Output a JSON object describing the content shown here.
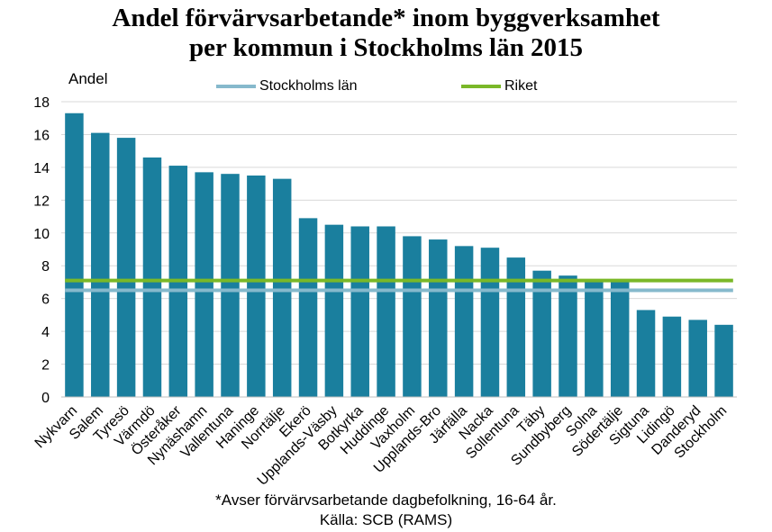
{
  "chart_data": {
    "type": "bar",
    "title_line1": "Andel förvärvsarbetande* inom byggverksamhet",
    "title_line2": "per kommun i Stockholms län 2015",
    "ylabel": "Andel",
    "ylim": [
      0,
      18
    ],
    "yticks": [
      "0",
      "2",
      "4",
      "6",
      "8",
      "10",
      "12",
      "14",
      "16",
      "18"
    ],
    "grid": true,
    "legend_position": "top",
    "bar_color": "#1a7f9e",
    "categories": [
      "Nykvarn",
      "Salem",
      "Tyresö",
      "Värmdö",
      "Österåker",
      "Nynäshamn",
      "Vallentuna",
      "Haninge",
      "Norrtälje",
      "Ekerö",
      "Upplands-Väsby",
      "Botkyrka",
      "Huddinge",
      "Vaxholm",
      "Upplands-Bro",
      "Järfälla",
      "Nacka",
      "Sollentuna",
      "Täby",
      "Sundbyberg",
      "Solna",
      "Södertälje",
      "Sigtuna",
      "Lidingö",
      "Danderyd",
      "Stockholm"
    ],
    "values": [
      17.3,
      16.1,
      15.8,
      14.6,
      14.1,
      13.7,
      13.6,
      13.5,
      13.3,
      10.9,
      10.5,
      10.4,
      10.4,
      9.8,
      9.6,
      9.2,
      9.1,
      8.5,
      7.7,
      7.4,
      7.0,
      7.0,
      5.3,
      4.9,
      4.7,
      4.4
    ],
    "reference_lines": [
      {
        "name": "Stockholms län",
        "value": 6.5,
        "color": "#86b9cc"
      },
      {
        "name": "Riket",
        "value": 7.1,
        "color": "#7ab828"
      }
    ],
    "footnote": "*Avser förvärvsarbetande dagbefolkning,  16-64 år.",
    "source": "Källa: SCB (RAMS)"
  }
}
